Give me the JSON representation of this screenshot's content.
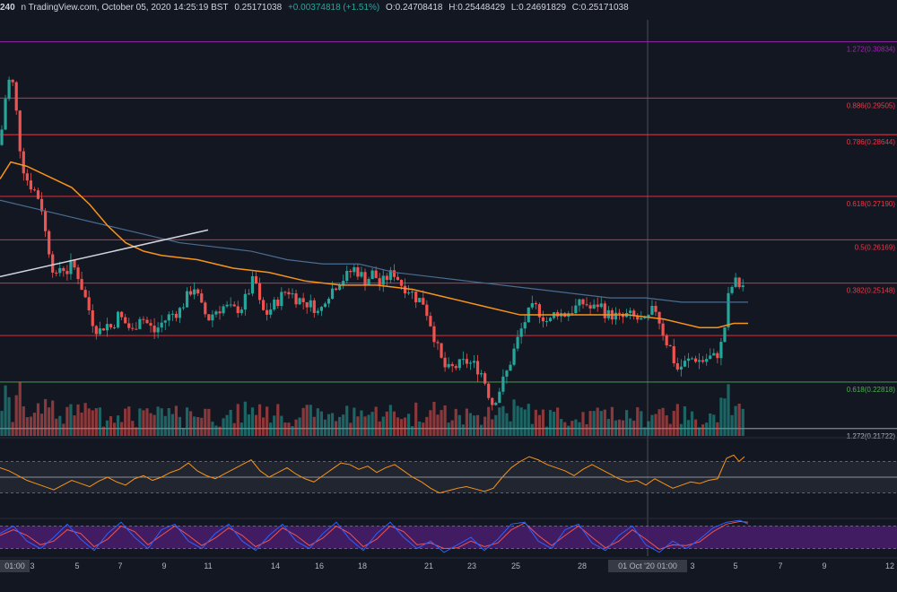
{
  "header": {
    "pair_fragment": "240",
    "source_fragment": "n TradingView.com, October 05, 2020 14:25:19 BST",
    "last": "0.25171038",
    "change": "+0.00374818 (+1.51%)",
    "o": "O:0.24708418",
    "h": "H:0.25448429",
    "l": "L:0.24691829",
    "c": "C:0.25171038"
  },
  "colors": {
    "background": "#131722",
    "up": "#26a69a",
    "down": "#ef5350",
    "fib": "#f23645",
    "purple": "#9c27b0",
    "green": "#4caf50",
    "ma_orange": "#f7931a",
    "ma_blue": "#4a6c91",
    "rsi": "#f7931a",
    "stoch_k": "#2962ff",
    "stoch_d": "#ef5350",
    "stoch_band": "#4a1d6e"
  },
  "chart_data": {
    "type": "candlestick",
    "price_range": [
      0.2155,
      0.3135
    ],
    "fib_levels": [
      {
        "label": "1.272(0.30834)",
        "value": 0.30834,
        "color": "purple"
      },
      {
        "label": "0.886(0.29505)",
        "value": 0.29505,
        "color": "fib"
      },
      {
        "label": "0.786(0.28644)",
        "value": 0.28644,
        "color": "fib"
      },
      {
        "label": "0.618(0.27190)",
        "value": 0.2719,
        "color": "fib"
      },
      {
        "label": "0.5(0.26169)",
        "value": 0.26169,
        "color": "fib"
      },
      {
        "label": "0.382(0.25148)",
        "value": 0.25148,
        "color": "fib"
      },
      {
        "label": "",
        "value": 0.23914,
        "color": "fib"
      },
      {
        "label": "0.618(0.22818)",
        "value": 0.22818,
        "color": "green"
      },
      {
        "label": "1.272(0.21722)",
        "value": 0.21722,
        "color": "white"
      }
    ],
    "x_ticks": [
      {
        "label": "01:00",
        "x": 4
      },
      {
        "label": "3",
        "x": 36
      },
      {
        "label": "5",
        "x": 86
      },
      {
        "label": "7",
        "x": 134
      },
      {
        "label": "9",
        "x": 183
      },
      {
        "label": "11",
        "x": 232
      },
      {
        "label": "14",
        "x": 307
      },
      {
        "label": "16",
        "x": 356
      },
      {
        "label": "18",
        "x": 404
      },
      {
        "label": "21",
        "x": 478
      },
      {
        "label": "23",
        "x": 526
      },
      {
        "label": "25",
        "x": 575
      },
      {
        "label": "28",
        "x": 649
      },
      {
        "label": "01 Oct '20 01:00",
        "x": 722
      },
      {
        "label": "3",
        "x": 772
      },
      {
        "label": "5",
        "x": 820
      },
      {
        "label": "7",
        "x": 870
      },
      {
        "label": "9",
        "x": 919
      },
      {
        "label": "12",
        "x": 992
      }
    ],
    "price_path": [
      [
        0,
        0.284
      ],
      [
        6,
        0.295
      ],
      [
        12,
        0.301
      ],
      [
        16,
        0.296
      ],
      [
        20,
        0.288
      ],
      [
        24,
        0.28
      ],
      [
        30,
        0.276
      ],
      [
        36,
        0.274
      ],
      [
        42,
        0.272
      ],
      [
        46,
        0.27
      ],
      [
        50,
        0.264
      ],
      [
        56,
        0.258
      ],
      [
        62,
        0.252
      ],
      [
        68,
        0.256
      ],
      [
        74,
        0.254
      ],
      [
        80,
        0.256
      ],
      [
        86,
        0.254
      ],
      [
        92,
        0.25
      ],
      [
        98,
        0.246
      ],
      [
        104,
        0.242
      ],
      [
        110,
        0.24
      ],
      [
        118,
        0.242
      ],
      [
        124,
        0.241
      ],
      [
        132,
        0.244
      ],
      [
        140,
        0.242
      ],
      [
        148,
        0.24
      ],
      [
        156,
        0.244
      ],
      [
        164,
        0.242
      ],
      [
        172,
        0.24
      ],
      [
        180,
        0.242
      ],
      [
        190,
        0.244
      ],
      [
        200,
        0.245
      ],
      [
        208,
        0.248
      ],
      [
        216,
        0.251
      ],
      [
        224,
        0.246
      ],
      [
        232,
        0.243
      ],
      [
        240,
        0.245
      ],
      [
        250,
        0.246
      ],
      [
        260,
        0.245
      ],
      [
        270,
        0.246
      ],
      [
        278,
        0.25
      ],
      [
        284,
        0.253
      ],
      [
        290,
        0.246
      ],
      [
        296,
        0.244
      ],
      [
        304,
        0.246
      ],
      [
        312,
        0.248
      ],
      [
        320,
        0.25
      ],
      [
        330,
        0.248
      ],
      [
        340,
        0.247
      ],
      [
        350,
        0.246
      ],
      [
        356,
        0.244
      ],
      [
        362,
        0.248
      ],
      [
        370,
        0.25
      ],
      [
        378,
        0.252
      ],
      [
        386,
        0.253
      ],
      [
        394,
        0.255
      ],
      [
        400,
        0.254
      ],
      [
        408,
        0.252
      ],
      [
        416,
        0.254
      ],
      [
        424,
        0.251
      ],
      [
        432,
        0.253
      ],
      [
        440,
        0.254
      ],
      [
        448,
        0.251
      ],
      [
        456,
        0.25
      ],
      [
        464,
        0.248
      ],
      [
        472,
        0.247
      ],
      [
        480,
        0.242
      ],
      [
        488,
        0.236
      ],
      [
        494,
        0.232
      ],
      [
        500,
        0.231
      ],
      [
        510,
        0.232
      ],
      [
        520,
        0.233
      ],
      [
        530,
        0.232
      ],
      [
        538,
        0.23
      ],
      [
        544,
        0.226
      ],
      [
        548,
        0.223
      ],
      [
        554,
        0.225
      ],
      [
        560,
        0.228
      ],
      [
        566,
        0.231
      ],
      [
        572,
        0.235
      ],
      [
        580,
        0.24
      ],
      [
        588,
        0.244
      ],
      [
        596,
        0.246
      ],
      [
        604,
        0.244
      ],
      [
        612,
        0.242
      ],
      [
        620,
        0.245
      ],
      [
        628,
        0.244
      ],
      [
        636,
        0.245
      ],
      [
        644,
        0.246
      ],
      [
        652,
        0.247
      ],
      [
        660,
        0.245
      ],
      [
        668,
        0.247
      ],
      [
        676,
        0.244
      ],
      [
        684,
        0.244
      ],
      [
        692,
        0.243
      ],
      [
        700,
        0.244
      ],
      [
        710,
        0.243
      ],
      [
        720,
        0.242
      ],
      [
        730,
        0.246
      ],
      [
        736,
        0.242
      ],
      [
        742,
        0.238
      ],
      [
        748,
        0.236
      ],
      [
        754,
        0.231
      ],
      [
        760,
        0.232
      ],
      [
        766,
        0.233
      ],
      [
        774,
        0.234
      ],
      [
        782,
        0.233
      ],
      [
        790,
        0.234
      ],
      [
        798,
        0.234
      ],
      [
        806,
        0.238
      ],
      [
        812,
        0.248
      ],
      [
        818,
        0.252
      ],
      [
        824,
        0.251
      ],
      [
        830,
        0.251
      ]
    ],
    "ma_orange": [
      [
        0,
        0.276
      ],
      [
        12,
        0.28
      ],
      [
        30,
        0.279
      ],
      [
        60,
        0.276
      ],
      [
        80,
        0.274
      ],
      [
        100,
        0.27
      ],
      [
        120,
        0.265
      ],
      [
        140,
        0.261
      ],
      [
        160,
        0.259
      ],
      [
        180,
        0.258
      ],
      [
        220,
        0.257
      ],
      [
        260,
        0.255
      ],
      [
        300,
        0.254
      ],
      [
        340,
        0.252
      ],
      [
        380,
        0.251
      ],
      [
        420,
        0.251
      ],
      [
        460,
        0.25
      ],
      [
        500,
        0.248
      ],
      [
        540,
        0.246
      ],
      [
        580,
        0.244
      ],
      [
        620,
        0.244
      ],
      [
        660,
        0.244
      ],
      [
        700,
        0.244
      ],
      [
        740,
        0.243
      ],
      [
        780,
        0.241
      ],
      [
        800,
        0.241
      ],
      [
        818,
        0.242
      ],
      [
        834,
        0.242
      ]
    ],
    "ma_blue": [
      [
        0,
        0.271
      ],
      [
        40,
        0.269
      ],
      [
        80,
        0.267
      ],
      [
        120,
        0.265
      ],
      [
        160,
        0.263
      ],
      [
        200,
        0.261
      ],
      [
        240,
        0.26
      ],
      [
        280,
        0.259
      ],
      [
        320,
        0.257
      ],
      [
        360,
        0.256
      ],
      [
        400,
        0.256
      ],
      [
        440,
        0.254
      ],
      [
        480,
        0.253
      ],
      [
        520,
        0.252
      ],
      [
        560,
        0.251
      ],
      [
        600,
        0.25
      ],
      [
        640,
        0.249
      ],
      [
        680,
        0.248
      ],
      [
        720,
        0.248
      ],
      [
        760,
        0.247
      ],
      [
        800,
        0.247
      ],
      [
        834,
        0.247
      ]
    ],
    "trendline": [
      [
        0,
        0.253
      ],
      [
        232,
        0.264
      ]
    ],
    "rsi": [
      [
        0,
        62
      ],
      [
        10,
        58
      ],
      [
        20,
        52
      ],
      [
        30,
        46
      ],
      [
        40,
        42
      ],
      [
        50,
        38
      ],
      [
        60,
        34
      ],
      [
        70,
        40
      ],
      [
        80,
        46
      ],
      [
        90,
        42
      ],
      [
        100,
        38
      ],
      [
        110,
        45
      ],
      [
        120,
        50
      ],
      [
        130,
        44
      ],
      [
        140,
        40
      ],
      [
        150,
        48
      ],
      [
        160,
        52
      ],
      [
        170,
        46
      ],
      [
        180,
        50
      ],
      [
        190,
        56
      ],
      [
        200,
        60
      ],
      [
        210,
        68
      ],
      [
        220,
        58
      ],
      [
        230,
        52
      ],
      [
        240,
        48
      ],
      [
        250,
        54
      ],
      [
        260,
        60
      ],
      [
        270,
        66
      ],
      [
        280,
        72
      ],
      [
        290,
        58
      ],
      [
        300,
        50
      ],
      [
        310,
        56
      ],
      [
        320,
        62
      ],
      [
        330,
        54
      ],
      [
        340,
        48
      ],
      [
        350,
        44
      ],
      [
        360,
        52
      ],
      [
        370,
        60
      ],
      [
        380,
        68
      ],
      [
        390,
        66
      ],
      [
        400,
        60
      ],
      [
        410,
        64
      ],
      [
        420,
        56
      ],
      [
        430,
        62
      ],
      [
        440,
        66
      ],
      [
        450,
        58
      ],
      [
        460,
        50
      ],
      [
        470,
        44
      ],
      [
        480,
        36
      ],
      [
        490,
        30
      ],
      [
        500,
        33
      ],
      [
        510,
        36
      ],
      [
        520,
        38
      ],
      [
        530,
        35
      ],
      [
        540,
        32
      ],
      [
        550,
        36
      ],
      [
        560,
        50
      ],
      [
        570,
        62
      ],
      [
        580,
        70
      ],
      [
        590,
        76
      ],
      [
        600,
        72
      ],
      [
        610,
        66
      ],
      [
        620,
        62
      ],
      [
        630,
        58
      ],
      [
        640,
        52
      ],
      [
        650,
        60
      ],
      [
        660,
        66
      ],
      [
        670,
        60
      ],
      [
        680,
        54
      ],
      [
        690,
        48
      ],
      [
        700,
        44
      ],
      [
        710,
        46
      ],
      [
        720,
        40
      ],
      [
        730,
        48
      ],
      [
        740,
        42
      ],
      [
        750,
        36
      ],
      [
        760,
        40
      ],
      [
        770,
        44
      ],
      [
        780,
        42
      ],
      [
        790,
        46
      ],
      [
        800,
        48
      ],
      [
        810,
        74
      ],
      [
        818,
        78
      ],
      [
        824,
        70
      ],
      [
        830,
        76
      ]
    ],
    "rsi_range": [
      0,
      100
    ],
    "rsi_band": [
      30,
      70
    ],
    "stoch_k": [
      [
        0,
        60
      ],
      [
        15,
        80
      ],
      [
        30,
        40
      ],
      [
        45,
        20
      ],
      [
        60,
        50
      ],
      [
        75,
        85
      ],
      [
        90,
        45
      ],
      [
        105,
        15
      ],
      [
        120,
        60
      ],
      [
        135,
        90
      ],
      [
        150,
        50
      ],
      [
        165,
        20
      ],
      [
        180,
        70
      ],
      [
        195,
        85
      ],
      [
        210,
        40
      ],
      [
        225,
        20
      ],
      [
        240,
        60
      ],
      [
        255,
        85
      ],
      [
        270,
        40
      ],
      [
        285,
        15
      ],
      [
        300,
        55
      ],
      [
        315,
        85
      ],
      [
        330,
        40
      ],
      [
        345,
        20
      ],
      [
        360,
        60
      ],
      [
        375,
        90
      ],
      [
        390,
        45
      ],
      [
        405,
        15
      ],
      [
        420,
        60
      ],
      [
        435,
        90
      ],
      [
        450,
        50
      ],
      [
        465,
        20
      ],
      [
        480,
        40
      ],
      [
        495,
        10
      ],
      [
        510,
        30
      ],
      [
        525,
        50
      ],
      [
        540,
        15
      ],
      [
        555,
        45
      ],
      [
        570,
        85
      ],
      [
        585,
        90
      ],
      [
        600,
        40
      ],
      [
        615,
        20
      ],
      [
        630,
        70
      ],
      [
        645,
        85
      ],
      [
        660,
        35
      ],
      [
        675,
        15
      ],
      [
        690,
        55
      ],
      [
        705,
        80
      ],
      [
        720,
        30
      ],
      [
        735,
        10
      ],
      [
        750,
        40
      ],
      [
        765,
        20
      ],
      [
        780,
        45
      ],
      [
        795,
        75
      ],
      [
        810,
        90
      ],
      [
        825,
        95
      ],
      [
        834,
        85
      ]
    ],
    "stoch_d": [
      [
        0,
        55
      ],
      [
        15,
        70
      ],
      [
        30,
        55
      ],
      [
        45,
        30
      ],
      [
        60,
        40
      ],
      [
        75,
        70
      ],
      [
        90,
        60
      ],
      [
        105,
        25
      ],
      [
        120,
        45
      ],
      [
        135,
        80
      ],
      [
        150,
        65
      ],
      [
        165,
        30
      ],
      [
        180,
        55
      ],
      [
        195,
        80
      ],
      [
        210,
        55
      ],
      [
        225,
        28
      ],
      [
        240,
        48
      ],
      [
        255,
        75
      ],
      [
        270,
        55
      ],
      [
        285,
        25
      ],
      [
        300,
        42
      ],
      [
        315,
        75
      ],
      [
        330,
        55
      ],
      [
        345,
        28
      ],
      [
        360,
        48
      ],
      [
        375,
        80
      ],
      [
        390,
        60
      ],
      [
        405,
        25
      ],
      [
        420,
        45
      ],
      [
        435,
        80
      ],
      [
        450,
        65
      ],
      [
        465,
        30
      ],
      [
        480,
        35
      ],
      [
        495,
        20
      ],
      [
        510,
        22
      ],
      [
        525,
        40
      ],
      [
        540,
        25
      ],
      [
        555,
        35
      ],
      [
        570,
        70
      ],
      [
        585,
        88
      ],
      [
        600,
        55
      ],
      [
        615,
        28
      ],
      [
        630,
        55
      ],
      [
        645,
        80
      ],
      [
        660,
        50
      ],
      [
        675,
        22
      ],
      [
        690,
        40
      ],
      [
        705,
        70
      ],
      [
        720,
        45
      ],
      [
        735,
        18
      ],
      [
        750,
        30
      ],
      [
        765,
        28
      ],
      [
        780,
        38
      ],
      [
        795,
        65
      ],
      [
        810,
        85
      ],
      [
        825,
        92
      ],
      [
        834,
        90
      ]
    ],
    "stoch_band": [
      20,
      80
    ],
    "volumes_seed": 7
  }
}
